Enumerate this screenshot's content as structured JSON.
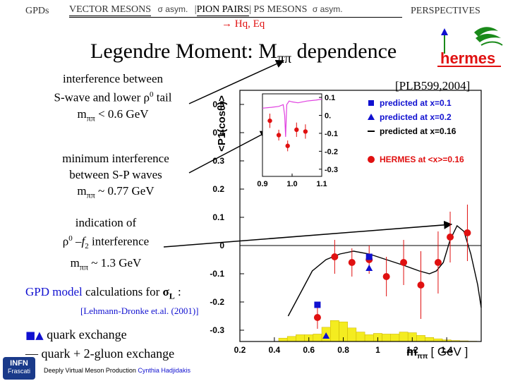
{
  "nav": {
    "gpds": "GPDs",
    "vector_mesons": "VECTOR MESONS",
    "sigma_asym_1": "σ asym.",
    "sep1": "|",
    "pion_pairs": "PION PAIRS",
    "sep2": "|",
    "ps_mesons": "PS MESONS",
    "sigma_asym_2": "σ asym.",
    "perspectives": "PERSPECTIVES",
    "sub_arrow": "→",
    "sub_text": "Hq, Eq"
  },
  "title": {
    "main": "Legendre Moment: M",
    "sub": "ππ",
    "tail": " dependence"
  },
  "reference": "[PLB599,2004]",
  "logo": {
    "text": "hermes"
  },
  "notes": {
    "n1_l1": "interference between",
    "n1_l2a": "S-wave and lower ρ",
    "n1_l2sup": "0",
    "n1_l2b": " tail",
    "n1_l3a": "m",
    "n1_l3sub": "ππ",
    "n1_l3b": " < 0.6 GeV",
    "n2_l1": "minimum interference",
    "n2_l2": "between S-P waves",
    "n2_l3a": "m",
    "n2_l3sub": "ππ",
    "n2_l3b": " ~ 0.77 GeV",
    "n3_l1": "indication of",
    "n3_l2a": "ρ",
    "n3_l2sup": "0",
    "n3_l2b": " –f",
    "n3_l2sub": "2",
    "n3_l2c": " interference",
    "n3_l3a": "m",
    "n3_l3sub": "ππ",
    "n3_l3b": " ~ 1.3 GeV",
    "gpd_a": "GPD model",
    "gpd_b": " calculations for ",
    "gpd_sigma": "σ",
    "gpd_sub": "L",
    "gpd_c": " :",
    "citation": "[Lehmann-Dronke et.al. (2001)]",
    "quark_symbols": "■▲",
    "quark_exchange": " quark exchange",
    "gluon_dash": "—",
    "gluon_exchange": " quark + 2-gluon exchange"
  },
  "footer": {
    "logo_l1": "INFN",
    "logo_l2": "Frascati",
    "text_a": "Deeply Virtual Meson Production ",
    "text_b": "Cynthia Hadjidakis"
  },
  "colors": {
    "red": "#e01010",
    "blue": "#1010d0",
    "yellow": "#f4ec20",
    "magenta": "#e040e0",
    "green": "#1a8a1a"
  },
  "chart_data": [
    {
      "type": "scatter",
      "ylabel": "<P1(cosθ)>",
      "xlabel": "mππ [ GeV ]",
      "xlabel_parts": {
        "m": "m",
        "sub": "ππ",
        "unit": "[ GeV ]"
      },
      "xlim": [
        0.2,
        1.6
      ],
      "ylim": [
        -0.34,
        0.55
      ],
      "x_ticks": [
        0.2,
        0.4,
        0.6,
        0.8,
        1,
        1.2,
        1.4
      ],
      "x_tick_labels": [
        "0.2",
        "0.4",
        "0.6",
        "0.8",
        "1",
        "1.2",
        "1.4"
      ],
      "y_ticks": [
        0.5,
        0.4,
        0.3,
        0.2,
        0.1,
        0,
        -0.1,
        -0.2,
        -0.3
      ],
      "y_tick_labels": [
        "0.5",
        "0.4",
        "0.3",
        "0.2",
        "0.1",
        "0",
        "-0.1",
        "-0.2",
        "-0.3"
      ],
      "grid": false,
      "legend_position": "top-right",
      "legend": [
        {
          "marker": "square",
          "color": "#1010d0",
          "label": "predicted at x=0.1"
        },
        {
          "marker": "triangle",
          "color": "#1010d0",
          "label": "predicted at x=0.2"
        },
        {
          "marker": "dash",
          "color": "#000000",
          "label": "predicted at x=0.16"
        },
        {
          "marker": "circle",
          "color": "#e01010",
          "label": "HERMES at <x>=0.16"
        }
      ],
      "series": [
        {
          "name": "HERMES at <x>=0.16",
          "marker": "circle",
          "points": [
            {
              "x": 0.65,
              "y": -0.255,
              "err": 0.04
            },
            {
              "x": 0.75,
              "y": -0.04,
              "err": 0.06
            },
            {
              "x": 0.85,
              "y": -0.06,
              "err": 0.05
            },
            {
              "x": 0.95,
              "y": -0.05,
              "err": 0.05
            },
            {
              "x": 1.05,
              "y": -0.11,
              "err": 0.07
            },
            {
              "x": 1.15,
              "y": -0.06,
              "err": 0.08
            },
            {
              "x": 1.25,
              "y": -0.14,
              "err": 0.12
            },
            {
              "x": 1.35,
              "y": -0.06,
              "err": 0.11
            },
            {
              "x": 1.42,
              "y": 0.03,
              "err": 0.09
            },
            {
              "x": 1.52,
              "y": 0.045,
              "err": 0.1
            }
          ]
        },
        {
          "name": "predicted at x=0.1",
          "marker": "square",
          "points": [
            {
              "x": 0.65,
              "y": -0.21
            },
            {
              "x": 0.95,
              "y": -0.04
            }
          ]
        },
        {
          "name": "predicted at x=0.2",
          "marker": "triangle",
          "points": [
            {
              "x": 0.7,
              "y": -0.32
            },
            {
              "x": 0.95,
              "y": -0.08
            }
          ]
        },
        {
          "name": "predicted at x=0.16",
          "line": true,
          "points": [
            {
              "x": 0.48,
              "y": -0.25
            },
            {
              "x": 0.55,
              "y": -0.17
            },
            {
              "x": 0.62,
              "y": -0.09
            },
            {
              "x": 0.7,
              "y": -0.05
            },
            {
              "x": 0.78,
              "y": -0.03
            },
            {
              "x": 0.86,
              "y": -0.02
            },
            {
              "x": 0.95,
              "y": -0.03
            },
            {
              "x": 1.05,
              "y": -0.05
            },
            {
              "x": 1.15,
              "y": -0.07
            },
            {
              "x": 1.24,
              "y": -0.09
            },
            {
              "x": 1.3,
              "y": -0.1
            },
            {
              "x": 1.34,
              "y": -0.09
            },
            {
              "x": 1.38,
              "y": -0.06
            },
            {
              "x": 1.42,
              "y": 0.02
            },
            {
              "x": 1.46,
              "y": 0.07
            },
            {
              "x": 1.5,
              "y": 0.05
            },
            {
              "x": 1.54,
              "y": -0.03
            },
            {
              "x": 1.58,
              "y": -0.14
            },
            {
              "x": 1.6,
              "y": -0.22
            }
          ]
        }
      ],
      "histogram": {
        "name": "mass distribution",
        "bin_width": 0.05,
        "bins": [
          {
            "x": 0.45,
            "y": 0.1
          },
          {
            "x": 0.5,
            "y": 0.15
          },
          {
            "x": 0.55,
            "y": 0.2
          },
          {
            "x": 0.6,
            "y": 0.2
          },
          {
            "x": 0.65,
            "y": 0.22
          },
          {
            "x": 0.7,
            "y": 0.42
          },
          {
            "x": 0.75,
            "y": 0.62
          },
          {
            "x": 0.8,
            "y": 0.58
          },
          {
            "x": 0.85,
            "y": 0.4
          },
          {
            "x": 0.9,
            "y": 0.28
          },
          {
            "x": 0.95,
            "y": 0.2
          },
          {
            "x": 1.0,
            "y": 0.24
          },
          {
            "x": 1.05,
            "y": 0.22
          },
          {
            "x": 1.1,
            "y": 0.22
          },
          {
            "x": 1.15,
            "y": 0.28
          },
          {
            "x": 1.2,
            "y": 0.26
          },
          {
            "x": 1.25,
            "y": 0.18
          },
          {
            "x": 1.3,
            "y": 0.12
          },
          {
            "x": 1.35,
            "y": 0.08
          },
          {
            "x": 1.4,
            "y": 0.05
          },
          {
            "x": 1.45,
            "y": 0.03
          },
          {
            "x": 1.5,
            "y": 0.02
          },
          {
            "x": 1.55,
            "y": 0.01
          }
        ]
      }
    },
    {
      "type": "scatter",
      "name": "inset",
      "xlim": [
        0.9,
        1.1
      ],
      "ylim": [
        -0.34,
        0.12
      ],
      "x_ticks": [
        0.9,
        1.0,
        1.1
      ],
      "x_tick_labels": [
        "0.9",
        "1.0",
        "1.1"
      ],
      "y_ticks": [
        0.1,
        0,
        -0.1,
        -0.2,
        -0.3
      ],
      "y_tick_labels": [
        "0.1",
        "0.",
        "-0.1",
        "-0.2",
        "-0.3"
      ],
      "series": [
        {
          "name": "data",
          "marker": "circle",
          "points": [
            {
              "x": 0.925,
              "y": -0.03,
              "err": 0.04
            },
            {
              "x": 0.955,
              "y": -0.11,
              "err": 0.03
            },
            {
              "x": 0.985,
              "y": -0.17,
              "err": 0.03
            },
            {
              "x": 1.015,
              "y": -0.08,
              "err": 0.04
            },
            {
              "x": 1.045,
              "y": -0.09,
              "err": 0.04
            }
          ]
        },
        {
          "name": "model",
          "line": true,
          "points": [
            {
              "x": 0.9,
              "y": 0.04
            },
            {
              "x": 0.93,
              "y": 0.045
            },
            {
              "x": 0.955,
              "y": 0.05
            },
            {
              "x": 0.97,
              "y": 0.06
            },
            {
              "x": 0.975,
              "y": 0.0
            },
            {
              "x": 0.978,
              "y": -0.12
            },
            {
              "x": 0.982,
              "y": 0.06
            },
            {
              "x": 0.99,
              "y": 0.08
            },
            {
              "x": 1.0,
              "y": 0.075
            },
            {
              "x": 1.02,
              "y": 0.07
            },
            {
              "x": 1.05,
              "y": 0.08
            },
            {
              "x": 1.08,
              "y": 0.085
            },
            {
              "x": 1.1,
              "y": 0.09
            }
          ]
        }
      ]
    }
  ]
}
